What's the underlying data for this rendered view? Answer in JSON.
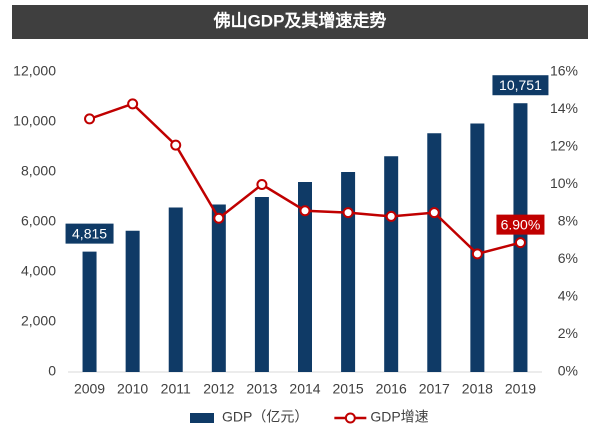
{
  "chart_data": {
    "type": "bar-line",
    "title": "佛山GDP及其增速走势",
    "categories": [
      "2009",
      "2010",
      "2011",
      "2012",
      "2013",
      "2014",
      "2015",
      "2016",
      "2017",
      "2018",
      "2019"
    ],
    "series": [
      {
        "name": "GDP（亿元）",
        "type": "bar",
        "color": "#0f3a66",
        "values": [
          4815,
          5650,
          6580,
          6700,
          7000,
          7600,
          8000,
          8630,
          9550,
          9940,
          10751
        ],
        "value_labels": [
          "4,815",
          null,
          null,
          null,
          null,
          null,
          null,
          null,
          null,
          null,
          "10,751"
        ]
      },
      {
        "name": "GDP增速",
        "type": "line",
        "color": "#c00000",
        "axis": "y2",
        "values": [
          13.5,
          14.3,
          12.1,
          8.2,
          10.0,
          8.6,
          8.5,
          8.3,
          8.5,
          6.3,
          6.9
        ],
        "value_labels": [
          null,
          null,
          null,
          null,
          null,
          null,
          null,
          null,
          null,
          null,
          "6.90%"
        ]
      }
    ],
    "ylim": [
      0,
      12000
    ],
    "yticks": [
      0,
      {
        "value": 2000,
        "label": "2,000"
      },
      {
        "value": 4000,
        "label": "4,000"
      },
      {
        "value": 6000,
        "label": "6,000"
      },
      {
        "value": 8000,
        "label": "8,000"
      },
      {
        "value": 10000,
        "label": "10,000"
      },
      {
        "value": 12000,
        "label": "12,000"
      }
    ],
    "y2lim": [
      0,
      16
    ],
    "y2ticks": [
      {
        "value": 0,
        "label": "0%"
      },
      {
        "value": 2,
        "label": "2%"
      },
      {
        "value": 4,
        "label": "4%"
      },
      {
        "value": 6,
        "label": "6%"
      },
      {
        "value": 8,
        "label": "8%"
      },
      {
        "value": 10,
        "label": "10%"
      },
      {
        "value": 12,
        "label": "12%"
      },
      {
        "value": 14,
        "label": "14%"
      },
      {
        "value": 16,
        "label": "16%"
      }
    ],
    "grid": false,
    "legend": "bottom"
  }
}
